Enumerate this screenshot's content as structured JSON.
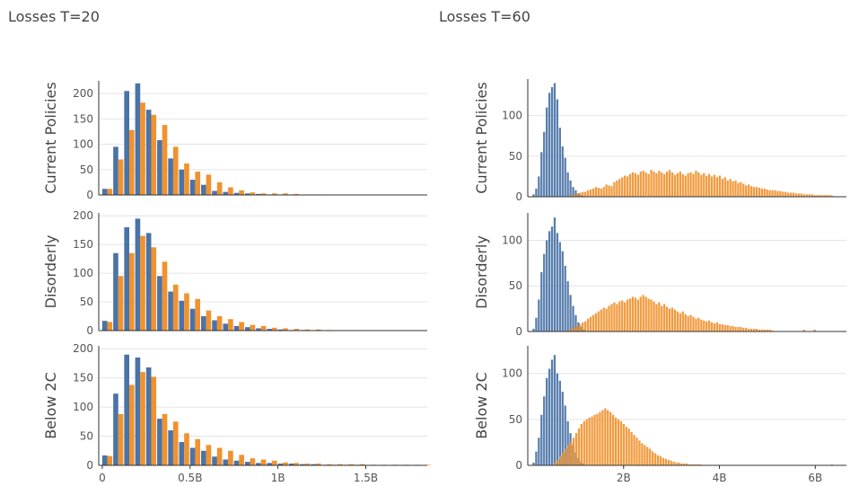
{
  "titles": {
    "left": "Losses T=20",
    "right": "Losses T=60"
  },
  "colors": {
    "series_a": "#4a73a6",
    "series_b": "#f0922f",
    "grid": "#e4e4e4",
    "axis": "#333333"
  },
  "chart_data": [
    {
      "type": "bar",
      "panel": "left",
      "title": "Losses T=20",
      "x_ticks": [
        {
          "value": 0,
          "label": "0"
        },
        {
          "value": 0.5,
          "label": "0.5B"
        },
        {
          "value": 1,
          "label": "1B"
        },
        {
          "value": 1.5,
          "label": "1.5B"
        }
      ],
      "xlim": [
        -0.02,
        1.85
      ],
      "bin_width": 0.0625,
      "rows": [
        {
          "row_label": "Current Policies",
          "ylim": [
            0,
            225
          ],
          "y_ticks": [
            0,
            50,
            100,
            150,
            200
          ],
          "x": [
            0,
            0.0625,
            0.125,
            0.1875,
            0.25,
            0.3125,
            0.375,
            0.4375,
            0.5,
            0.5625,
            0.625,
            0.6875,
            0.75,
            0.8125,
            0.875,
            0.9375,
            1.0,
            1.0625,
            1.125,
            1.1875,
            1.25,
            1.3125
          ],
          "series": [
            {
              "values": [
                12,
                95,
                205,
                220,
                168,
                108,
                72,
                50,
                30,
                20,
                8,
                6,
                4,
                3,
                2,
                1,
                1,
                1,
                0,
                0,
                0,
                0
              ]
            },
            {
              "values": [
                12,
                70,
                128,
                182,
                158,
                138,
                95,
                62,
                46,
                40,
                25,
                15,
                9,
                5,
                3,
                3,
                3,
                2,
                1,
                1,
                0,
                0
              ]
            }
          ]
        },
        {
          "row_label": "Disorderly",
          "ylim": [
            0,
            205
          ],
          "y_ticks": [
            0,
            50,
            100,
            150,
            200
          ],
          "x": [
            0,
            0.0625,
            0.125,
            0.1875,
            0.25,
            0.3125,
            0.375,
            0.4375,
            0.5,
            0.5625,
            0.625,
            0.6875,
            0.75,
            0.8125,
            0.875,
            0.9375,
            1.0,
            1.0625,
            1.125,
            1.1875,
            1.25,
            1.3125
          ],
          "series": [
            {
              "values": [
                17,
                135,
                180,
                195,
                170,
                95,
                68,
                52,
                38,
                25,
                18,
                12,
                8,
                6,
                4,
                3,
                2,
                1,
                1,
                0,
                0,
                0
              ]
            },
            {
              "values": [
                15,
                95,
                135,
                165,
                145,
                120,
                80,
                65,
                55,
                35,
                25,
                20,
                15,
                10,
                8,
                5,
                4,
                3,
                2,
                2,
                1,
                0
              ]
            }
          ]
        },
        {
          "row_label": "Below 2C",
          "ylim": [
            0,
            205
          ],
          "y_ticks": [
            0,
            50,
            100,
            150,
            200
          ],
          "x": [
            0,
            0.0625,
            0.125,
            0.1875,
            0.25,
            0.3125,
            0.375,
            0.4375,
            0.5,
            0.5625,
            0.625,
            0.6875,
            0.75,
            0.8125,
            0.875,
            0.9375,
            1.0,
            1.0625,
            1.125,
            1.1875,
            1.25,
            1.3125,
            1.375,
            1.4375,
            1.5,
            1.5625,
            1.625,
            1.6875,
            1.75,
            1.8125
          ],
          "series": [
            {
              "values": [
                17,
                123,
                190,
                185,
                168,
                80,
                60,
                40,
                30,
                25,
                15,
                10,
                8,
                6,
                4,
                4,
                3,
                3,
                2,
                2,
                1,
                1,
                1,
                1,
                0,
                0,
                0,
                0,
                0,
                0
              ]
            },
            {
              "values": [
                16,
                88,
                138,
                160,
                152,
                88,
                75,
                55,
                45,
                35,
                30,
                25,
                18,
                12,
                10,
                8,
                5,
                4,
                3,
                3,
                2,
                2,
                2,
                2,
                1,
                1,
                1,
                1,
                1,
                1
              ]
            }
          ]
        }
      ]
    },
    {
      "type": "bar",
      "panel": "right",
      "title": "Losses T=60",
      "x_ticks": [
        {
          "value": 2,
          "label": "2B"
        },
        {
          "value": 4,
          "label": "4B"
        },
        {
          "value": 6,
          "label": "6B"
        }
      ],
      "xlim": [
        0,
        6.65
      ],
      "rows": [
        {
          "row_label": "Current Policies",
          "ylim": [
            0,
            145
          ],
          "y_ticks": [
            0,
            50,
            100
          ],
          "series": [
            {
              "x_start": 0.1,
              "bin_width": 0.055,
              "values": [
                3,
                10,
                25,
                55,
                80,
                110,
                128,
                135,
                140,
                120,
                85,
                62,
                48,
                30,
                20,
                12,
                8,
                4,
                2,
                1
              ]
            },
            {
              "x_start": 0.85,
              "bin_width": 0.055,
              "values": [
                1,
                2,
                3,
                4,
                5,
                6,
                6,
                8,
                9,
                10,
                12,
                11,
                10,
                12,
                15,
                14,
                13,
                18,
                20,
                22,
                24,
                26,
                25,
                28,
                30,
                29,
                27,
                31,
                32,
                30,
                28,
                33,
                31,
                29,
                32,
                30,
                28,
                31,
                33,
                30,
                27,
                29,
                31,
                28,
                26,
                29,
                30,
                28,
                32,
                30,
                27,
                29,
                26,
                28,
                25,
                27,
                24,
                26,
                22,
                24,
                20,
                22,
                19,
                20,
                17,
                18,
                16,
                14,
                15,
                13,
                12,
                12,
                11,
                10,
                10,
                9,
                8,
                8,
                8,
                7,
                7,
                6,
                6,
                5,
                5,
                5,
                4,
                4,
                4,
                3,
                3,
                3,
                3,
                2,
                2,
                2,
                2,
                2,
                2,
                2,
                1
              ]
            }
          ]
        },
        {
          "row_label": "Disorderly",
          "ylim": [
            0,
            130
          ],
          "y_ticks": [
            0,
            50,
            100
          ],
          "series": [
            {
              "x_start": 0.1,
              "bin_width": 0.055,
              "values": [
                3,
                15,
                35,
                65,
                85,
                100,
                110,
                115,
                125,
                108,
                98,
                88,
                72,
                55,
                40,
                28,
                18,
                10,
                5,
                2
              ]
            },
            {
              "x_start": 0.85,
              "bin_width": 0.055,
              "values": [
                2,
                3,
                5,
                6,
                8,
                10,
                11,
                14,
                16,
                18,
                20,
                22,
                24,
                26,
                25,
                28,
                30,
                32,
                30,
                33,
                34,
                32,
                35,
                36,
                38,
                37,
                35,
                38,
                40,
                38,
                36,
                35,
                33,
                30,
                32,
                28,
                30,
                27,
                25,
                26,
                24,
                22,
                20,
                22,
                19,
                17,
                18,
                16,
                14,
                15,
                13,
                12,
                11,
                12,
                10,
                9,
                10,
                8,
                8,
                7,
                7,
                6,
                6,
                5,
                5,
                5,
                4,
                4,
                3,
                3,
                3,
                3,
                2,
                2,
                2,
                2,
                2,
                1,
                0,
                0,
                0,
                0,
                0,
                0,
                0,
                0,
                0,
                0,
                0,
                2,
                0,
                0,
                0,
                2
              ]
            }
          ]
        },
        {
          "row_label": "Below 2C",
          "ylim": [
            0,
            130
          ],
          "y_ticks": [
            0,
            50,
            100
          ],
          "series": [
            {
              "x_start": 0.1,
              "bin_width": 0.055,
              "values": [
                3,
                15,
                30,
                55,
                75,
                95,
                105,
                115,
                120,
                100,
                92,
                80,
                65,
                48,
                35,
                22,
                14,
                8,
                4,
                2
              ]
            },
            {
              "x_start": 0.55,
              "bin_width": 0.055,
              "values": [
                3,
                6,
                10,
                14,
                18,
                22,
                25,
                30,
                35,
                40,
                45,
                48,
                50,
                52,
                53,
                55,
                56,
                58,
                60,
                62,
                60,
                58,
                55,
                52,
                50,
                48,
                45,
                42,
                40,
                36,
                33,
                30,
                27,
                24,
                22,
                20,
                18,
                15,
                13,
                11,
                10,
                8,
                7,
                6,
                5,
                4,
                3,
                3,
                2,
                2,
                2,
                1,
                1,
                1,
                1,
                1,
                0,
                0,
                0,
                0,
                0,
                0,
                0,
                0,
                0,
                0,
                0,
                0,
                0,
                0,
                0,
                0,
                0,
                0,
                0,
                0,
                0,
                0,
                0,
                0,
                0,
                0,
                0,
                0,
                0,
                0,
                0,
                0,
                0,
                0,
                0,
                0,
                0,
                0,
                0,
                0,
                0,
                0,
                0,
                0,
                0,
                0,
                0,
                0,
                0,
                1
              ]
            }
          ]
        }
      ]
    }
  ]
}
